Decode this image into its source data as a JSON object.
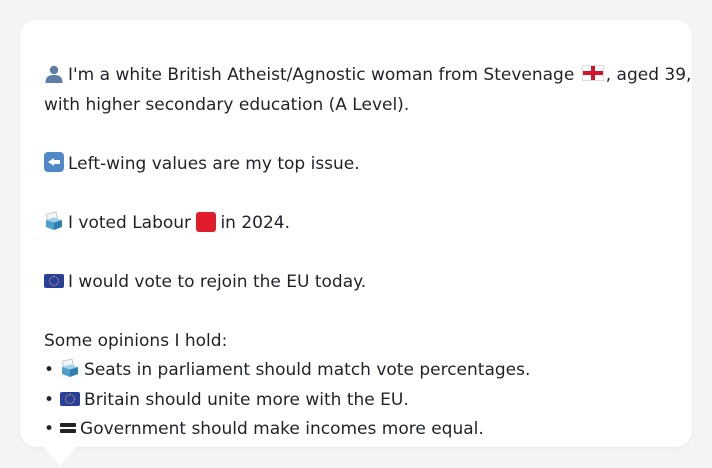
{
  "profile": {
    "intro_part1": "I'm a white British Atheist/Agnostic woman from Stevenage",
    "intro_part2": ", aged 39,",
    "intro_line2": "with higher secondary education (A Level).",
    "issue": "Left-wing values are my top issue.",
    "vote_part1": "I voted Labour",
    "vote_part2": "in 2024.",
    "eu": "I would vote to rejoin the EU today.",
    "opinions_heading": "Some opinions I hold:",
    "bullet_char": "•",
    "opinions": [
      {
        "icon": "ballot-box-icon",
        "text": "Seats in parliament should match vote percentages."
      },
      {
        "icon": "eu-flag-icon",
        "text": "Britain should unite more with the EU."
      },
      {
        "icon": "equals-icon",
        "text": "Government should make incomes more equal."
      }
    ]
  },
  "colors": {
    "background": "#f3f4f6",
    "card": "#ffffff",
    "text": "#1f2328",
    "labour_red": "#e11d2b",
    "eu_blue": "#2a3e9c",
    "left_arrow_blue": "#4f88c9"
  }
}
